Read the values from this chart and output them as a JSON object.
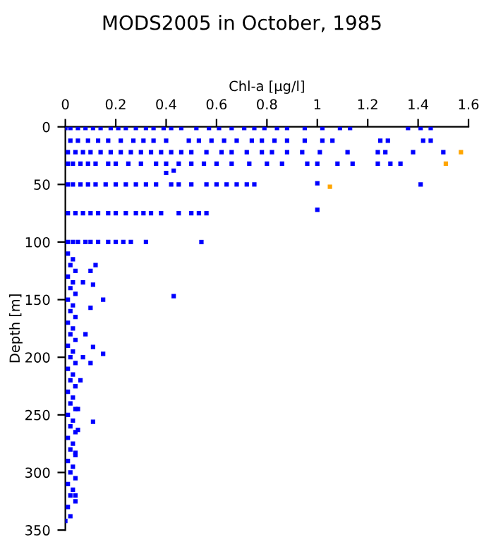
{
  "chart_data": {
    "type": "scatter",
    "title": "MODS2005 in October, 1985",
    "xlabel": "Chl-a [µg/l]",
    "ylabel": "Depth [m]",
    "xlim": [
      0,
      1.6
    ],
    "xticks": [
      0,
      0.2,
      0.4,
      0.6,
      0.8,
      1,
      1.2,
      1.4,
      1.6
    ],
    "ylim": [
      350,
      0
    ],
    "yticks": [
      0,
      50,
      100,
      150,
      200,
      250,
      300,
      350
    ],
    "grid": false,
    "marker": "square",
    "series": [
      {
        "color": "#0000ff",
        "x": [
          0,
          0.02,
          0.05,
          0.08,
          0.11,
          0.14,
          0.18,
          0.21,
          0.24,
          0.28,
          0.32,
          0.35,
          0.39,
          0.42,
          0.46,
          0.52,
          0.57,
          0.61,
          0.66,
          0.71,
          0.75,
          0.79,
          0.84,
          0.88,
          0.95,
          1.02,
          1.09,
          1.13,
          1.36,
          1.41,
          1.45,
          0.02,
          0.05,
          0.09,
          0.13,
          0.17,
          0.22,
          0.27,
          0.31,
          0.35,
          0.4,
          0.49,
          0.53,
          0.58,
          0.63,
          0.68,
          0.74,
          0.78,
          0.83,
          0.88,
          0.95,
          1.02,
          1.06,
          1.25,
          1.28,
          1.42,
          1.45,
          0.01,
          0.04,
          0.07,
          0.1,
          0.14,
          0.18,
          0.22,
          0.26,
          0.3,
          0.34,
          0.38,
          0.42,
          0.46,
          0.5,
          0.56,
          0.62,
          0.66,
          0.72,
          0.78,
          0.82,
          0.88,
          0.94,
          1.01,
          1.12,
          1.24,
          1.27,
          1.38,
          1.5,
          0.01,
          0.03,
          0.06,
          0.09,
          0.12,
          0.17,
          0.2,
          0.25,
          0.3,
          0.36,
          0.4,
          0.45,
          0.5,
          0.55,
          0.6,
          0.66,
          0.73,
          0.8,
          0.86,
          0.96,
          1.0,
          1.08,
          1.14,
          1.24,
          1.29,
          1.33,
          0.01,
          0.03,
          0.06,
          0.09,
          0.12,
          0.16,
          0.2,
          0.24,
          0.28,
          0.32,
          0.36,
          0.42,
          0.45,
          0.5,
          0.56,
          0.6,
          0.64,
          0.68,
          0.72,
          0.75,
          0.4,
          0.43,
          1.0,
          1.41,
          1.0,
          0.01,
          0.04,
          0.07,
          0.1,
          0.13,
          0.17,
          0.2,
          0.24,
          0.28,
          0.31,
          0.34,
          0.38,
          0.45,
          0.5,
          0.53,
          0.56,
          0.01,
          0.03,
          0.05,
          0.08,
          0.1,
          0.13,
          0.17,
          0.2,
          0.23,
          0.26,
          0.32,
          0.54,
          0.43,
          0.15,
          0.1,
          0.12,
          0.07,
          0.11,
          0.1,
          0.08,
          0.11,
          0.15,
          0.07,
          0.1,
          0.06,
          0.04,
          0.05,
          0.11,
          0.05,
          0.04,
          0.02,
          0.04,
          0.01,
          0.03,
          0.02,
          0.04,
          0.01,
          0.03,
          0.02,
          0.04,
          0.01,
          0.03,
          0.02,
          0.04,
          0.01,
          0.03,
          0.02,
          0.04,
          0.01,
          0.03,
          0.02,
          0.04,
          0.01,
          0.03,
          0.02,
          0.04,
          0.01,
          0.03,
          0.02,
          0.04,
          0.01,
          0.03,
          0.02,
          0.04,
          0.01,
          0.03,
          0.02,
          0.04,
          0.01,
          0.03,
          0.02,
          0.04,
          0.01,
          0.03,
          0.02,
          0.04,
          0.01,
          0.0
        ],
        "values": [
          1,
          1,
          1,
          1,
          1,
          1,
          1,
          1,
          1,
          1,
          1,
          1,
          1,
          1,
          1,
          1,
          1,
          1,
          1,
          1,
          1,
          1,
          1,
          1,
          1,
          1,
          1,
          1,
          1,
          1,
          1,
          12,
          12,
          12,
          12,
          12,
          12,
          12,
          12,
          12,
          12,
          12,
          12,
          12,
          12,
          12,
          12,
          12,
          12,
          12,
          12,
          12,
          12,
          12,
          12,
          12,
          12,
          22,
          22,
          22,
          22,
          22,
          22,
          22,
          22,
          22,
          22,
          22,
          22,
          22,
          22,
          22,
          22,
          22,
          22,
          22,
          22,
          22,
          22,
          22,
          22,
          22,
          22,
          22,
          22,
          32,
          32,
          32,
          32,
          32,
          32,
          32,
          32,
          32,
          32,
          32,
          32,
          32,
          32,
          32,
          32,
          32,
          32,
          32,
          32,
          32,
          32,
          32,
          32,
          32,
          32,
          50,
          50,
          50,
          50,
          50,
          50,
          50,
          50,
          50,
          50,
          50,
          50,
          50,
          50,
          50,
          50,
          50,
          50,
          50,
          50,
          40,
          38,
          49,
          50,
          72,
          75,
          75,
          75,
          75,
          75,
          75,
          75,
          75,
          75,
          75,
          75,
          75,
          75,
          75,
          75,
          75,
          100,
          100,
          100,
          100,
          100,
          100,
          100,
          100,
          100,
          100,
          100,
          100,
          147,
          150,
          125,
          120,
          135,
          137,
          157,
          180,
          191,
          197,
          200,
          205,
          220,
          225,
          245,
          256,
          263,
          283,
          338,
          320,
          110,
          115,
          120,
          125,
          130,
          135,
          140,
          145,
          150,
          155,
          160,
          165,
          170,
          175,
          180,
          185,
          190,
          195,
          200,
          205,
          210,
          215,
          220,
          225,
          230,
          235,
          240,
          245,
          250,
          255,
          260,
          265,
          270,
          275,
          280,
          285,
          290,
          295,
          300,
          305,
          310,
          315,
          320,
          325,
          330,
          342
        ]
      },
      {
        "color": "#ffa500",
        "x": [
          1.57,
          1.51,
          1.05
        ],
        "values": [
          22,
          32,
          52
        ]
      }
    ]
  }
}
